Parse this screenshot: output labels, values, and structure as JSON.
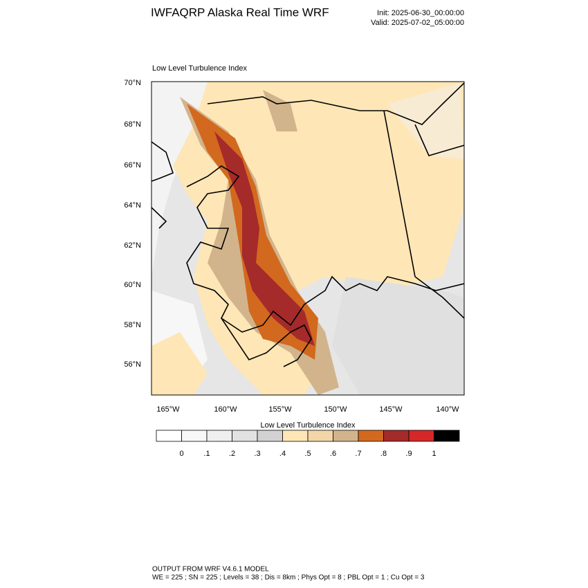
{
  "header": {
    "title": "IWFAQRP Alaska Real Time WRF",
    "init": "Init: 2025-06-30_00:00:00",
    "valid": "Valid: 2025-07-02_05:00:00"
  },
  "map": {
    "title": "Low Level Turbulence Index",
    "lat_labels": [
      "70°N",
      "68°N",
      "66°N",
      "64°N",
      "62°N",
      "60°N",
      "58°N",
      "56°N"
    ],
    "lon_labels": [
      "165°W",
      "160°W",
      "155°W",
      "150°W",
      "145°W",
      "140°W"
    ]
  },
  "colorbar": {
    "title": "Low Level Turbulence Index",
    "colors": [
      "#ffffff",
      "#f8f8f8",
      "#efefef",
      "#e2e2e2",
      "#d2d2d2",
      "#fee6b6",
      "#f2d6a8",
      "#d2b48c",
      "#d2691e",
      "#a52a2a",
      "#d62728",
      "#000000"
    ],
    "labels": [
      "0",
      ".1",
      ".2",
      ".3",
      ".4",
      ".5",
      ".6",
      ".7",
      ".8",
      ".9",
      "1"
    ]
  },
  "footer": {
    "line1": "OUTPUT FROM WRF V4.6.1 MODEL",
    "line2": "WE = 225 ; SN = 225 ; Levels = 38 ; Dis = 8km ; Phys Opt = 8 ; PBL Opt = 1 ; Cu Opt = 3"
  }
}
